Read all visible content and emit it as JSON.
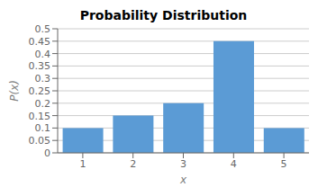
{
  "chart_data": {
    "type": "bar",
    "title": "Probability Distribution",
    "x_label": "x",
    "y_label": "P(x)",
    "categories": [
      "1",
      "2",
      "3",
      "4",
      "5"
    ],
    "values": [
      0.1,
      0.15,
      0.2,
      0.45,
      0.1
    ],
    "color": "#5B9BD5",
    "ylim": [
      0,
      0.5
    ],
    "yticks": [
      0,
      0.05,
      0.1,
      0.15,
      0.2,
      0.25,
      0.3,
      0.35,
      0.4,
      0.45,
      0.5
    ],
    "grid": true
  }
}
